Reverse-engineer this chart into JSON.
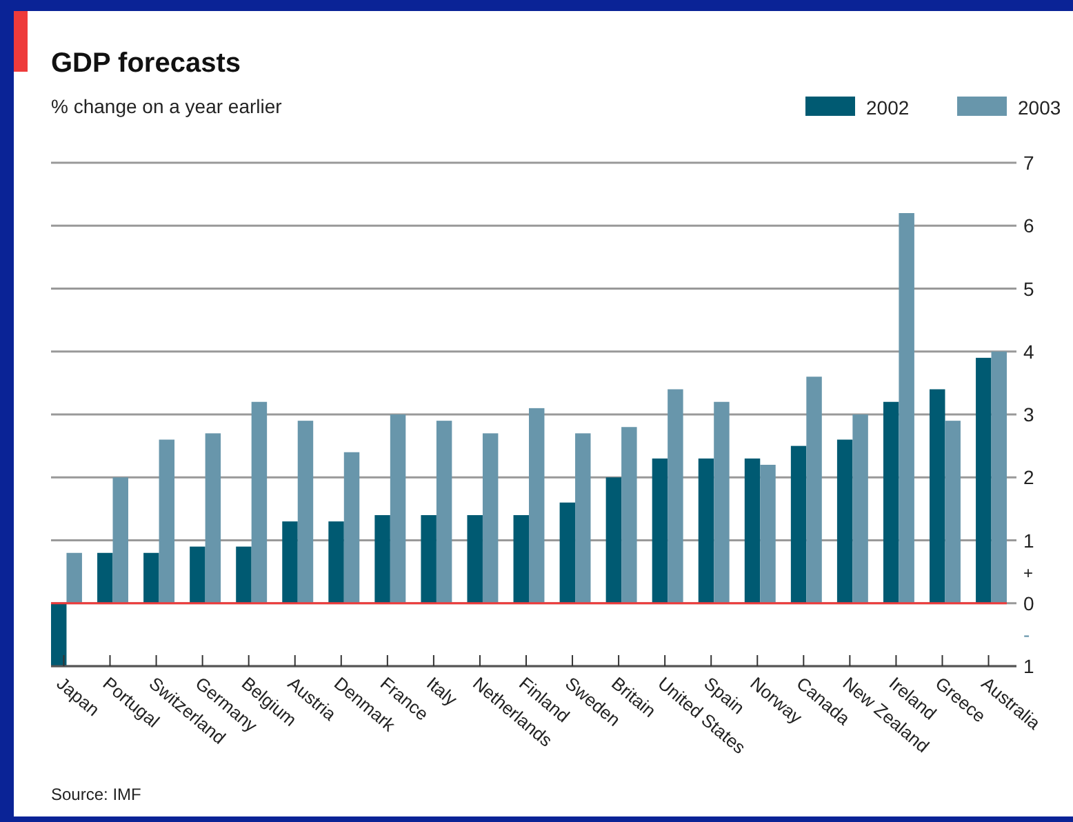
{
  "chart_data": {
    "type": "bar",
    "title": "GDP forecasts",
    "subtitle": "% change on a year earlier",
    "categories": [
      "Japan",
      "Portugal",
      "Switzerland",
      "Germany",
      "Belgium",
      "Austria",
      "Denmark",
      "France",
      "Italy",
      "Netherlands",
      "Finland",
      "Sweden",
      "Britain",
      "United States",
      "Spain",
      "Norway",
      "Canada",
      "New Zealand",
      "Ireland",
      "Greece",
      "Australia"
    ],
    "series": [
      {
        "name": "2002",
        "color": "#005a72",
        "values": [
          -1.0,
          0.8,
          0.8,
          0.9,
          0.9,
          1.3,
          1.3,
          1.4,
          1.4,
          1.4,
          1.4,
          1.6,
          2.0,
          2.3,
          2.3,
          2.3,
          2.5,
          2.6,
          3.2,
          3.4,
          3.9
        ]
      },
      {
        "name": "2003",
        "color": "#6896ab",
        "values": [
          0.8,
          2.0,
          2.6,
          2.7,
          3.2,
          2.9,
          2.4,
          3.0,
          2.9,
          2.7,
          3.1,
          2.7,
          2.8,
          3.4,
          3.2,
          2.2,
          3.6,
          3.0,
          6.2,
          2.9,
          4.0
        ]
      }
    ],
    "ylim": [
      -1,
      7
    ],
    "yticks": [
      {
        "value": -1,
        "label": "1"
      },
      0,
      1,
      2,
      3,
      4,
      5,
      6,
      7
    ],
    "ref_lines": [
      {
        "axis": "y",
        "value": 0,
        "color": "#ee3b3b"
      }
    ],
    "grid": "y",
    "legend": "top right",
    "annotations": [
      "Source: IMF",
      "+",
      "-"
    ]
  }
}
